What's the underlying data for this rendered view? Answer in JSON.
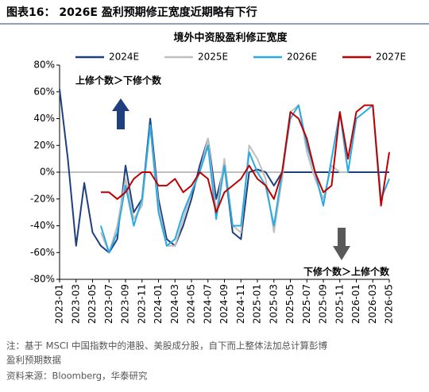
{
  "header": "图表16： 2026E 盈利预期修正宽度近期略有下行",
  "notes": [
    "注：基于 MSCI 中国指数中的港股、美股成分股，自下而上整体法加总计算彭博",
    "盈利预期数据"
  ],
  "source": "资料来源：Bloomberg，华泰研究",
  "chart_data": {
    "type": "line",
    "title": "境外中资股盈利修正宽度",
    "legend": "top",
    "grid": false,
    "annotations": [
      "上修个数＞下修个数",
      "下修个数＞上修个数"
    ],
    "categories": [
      "2023-01",
      null,
      "2023-03",
      null,
      "2023-05",
      null,
      "2023-07",
      null,
      "2023-09",
      null,
      "2023-11",
      null,
      "2024-01",
      null,
      "2024-03",
      null,
      "2024-05",
      null,
      "2024-07",
      null,
      "2024-09",
      null,
      "2024-11",
      null,
      "2025-01",
      null,
      "2025-03",
      null,
      "2025-05",
      null,
      "2025-07",
      null,
      "2025-09",
      null,
      "2025-11",
      null,
      "2026-01",
      null,
      "2026-03",
      null,
      "2026-05"
    ],
    "ylim": [
      -80,
      80
    ],
    "yticks": [
      {
        "value": -80,
        "label": "-80%"
      },
      {
        "value": -60,
        "label": "-60%"
      },
      {
        "value": -40,
        "label": "-40%"
      },
      {
        "value": -20,
        "label": "-20%"
      },
      {
        "value": 0,
        "label": "0%"
      },
      {
        "value": 20,
        "label": "20%"
      },
      {
        "value": 40,
        "label": "40%"
      },
      {
        "value": 60,
        "label": "60%"
      },
      {
        "value": 80,
        "label": "80%"
      }
    ],
    "series": [
      {
        "name": "2024E",
        "color": "#1f3f7f",
        "values": [
          62,
          10,
          -55,
          -8,
          -45,
          -55,
          -60,
          -50,
          5,
          -30,
          -20,
          40,
          -20,
          -50,
          -55,
          -40,
          -20,
          5,
          25,
          -20,
          5,
          -45,
          -50,
          0,
          2,
          0,
          -10,
          0,
          0,
          0,
          0,
          0,
          0,
          0,
          0,
          0,
          0,
          0,
          0,
          0,
          0
        ]
      },
      {
        "name": "2025E",
        "color": "#bfbfbf",
        "values": [
          null,
          null,
          null,
          null,
          null,
          -45,
          -60,
          -40,
          -5,
          -35,
          -25,
          35,
          -25,
          -55,
          -55,
          -35,
          -15,
          0,
          25,
          -30,
          10,
          -40,
          -45,
          20,
          10,
          -5,
          -45,
          -5,
          45,
          50,
          15,
          -5,
          -20,
          5,
          0,
          0,
          null,
          null,
          null,
          null,
          null
        ]
      },
      {
        "name": "2026E",
        "color": "#29abe2",
        "values": [
          null,
          null,
          null,
          null,
          null,
          -40,
          -60,
          -45,
          -10,
          -40,
          -20,
          35,
          -30,
          -55,
          -50,
          -30,
          -15,
          0,
          20,
          -35,
          5,
          -40,
          -40,
          15,
          0,
          -10,
          -40,
          0,
          40,
          50,
          20,
          0,
          -25,
          10,
          45,
          0,
          40,
          45,
          50,
          -20,
          -5
        ]
      },
      {
        "name": "2027E",
        "color": "#c00000",
        "values": [
          null,
          null,
          null,
          null,
          null,
          -15,
          -15,
          -20,
          -15,
          -5,
          0,
          0,
          -10,
          -10,
          -5,
          -15,
          -10,
          0,
          -5,
          -30,
          -15,
          -10,
          -5,
          5,
          -5,
          -10,
          -20,
          0,
          45,
          40,
          25,
          0,
          -15,
          -10,
          45,
          10,
          45,
          50,
          50,
          -25,
          15
        ]
      }
    ]
  }
}
